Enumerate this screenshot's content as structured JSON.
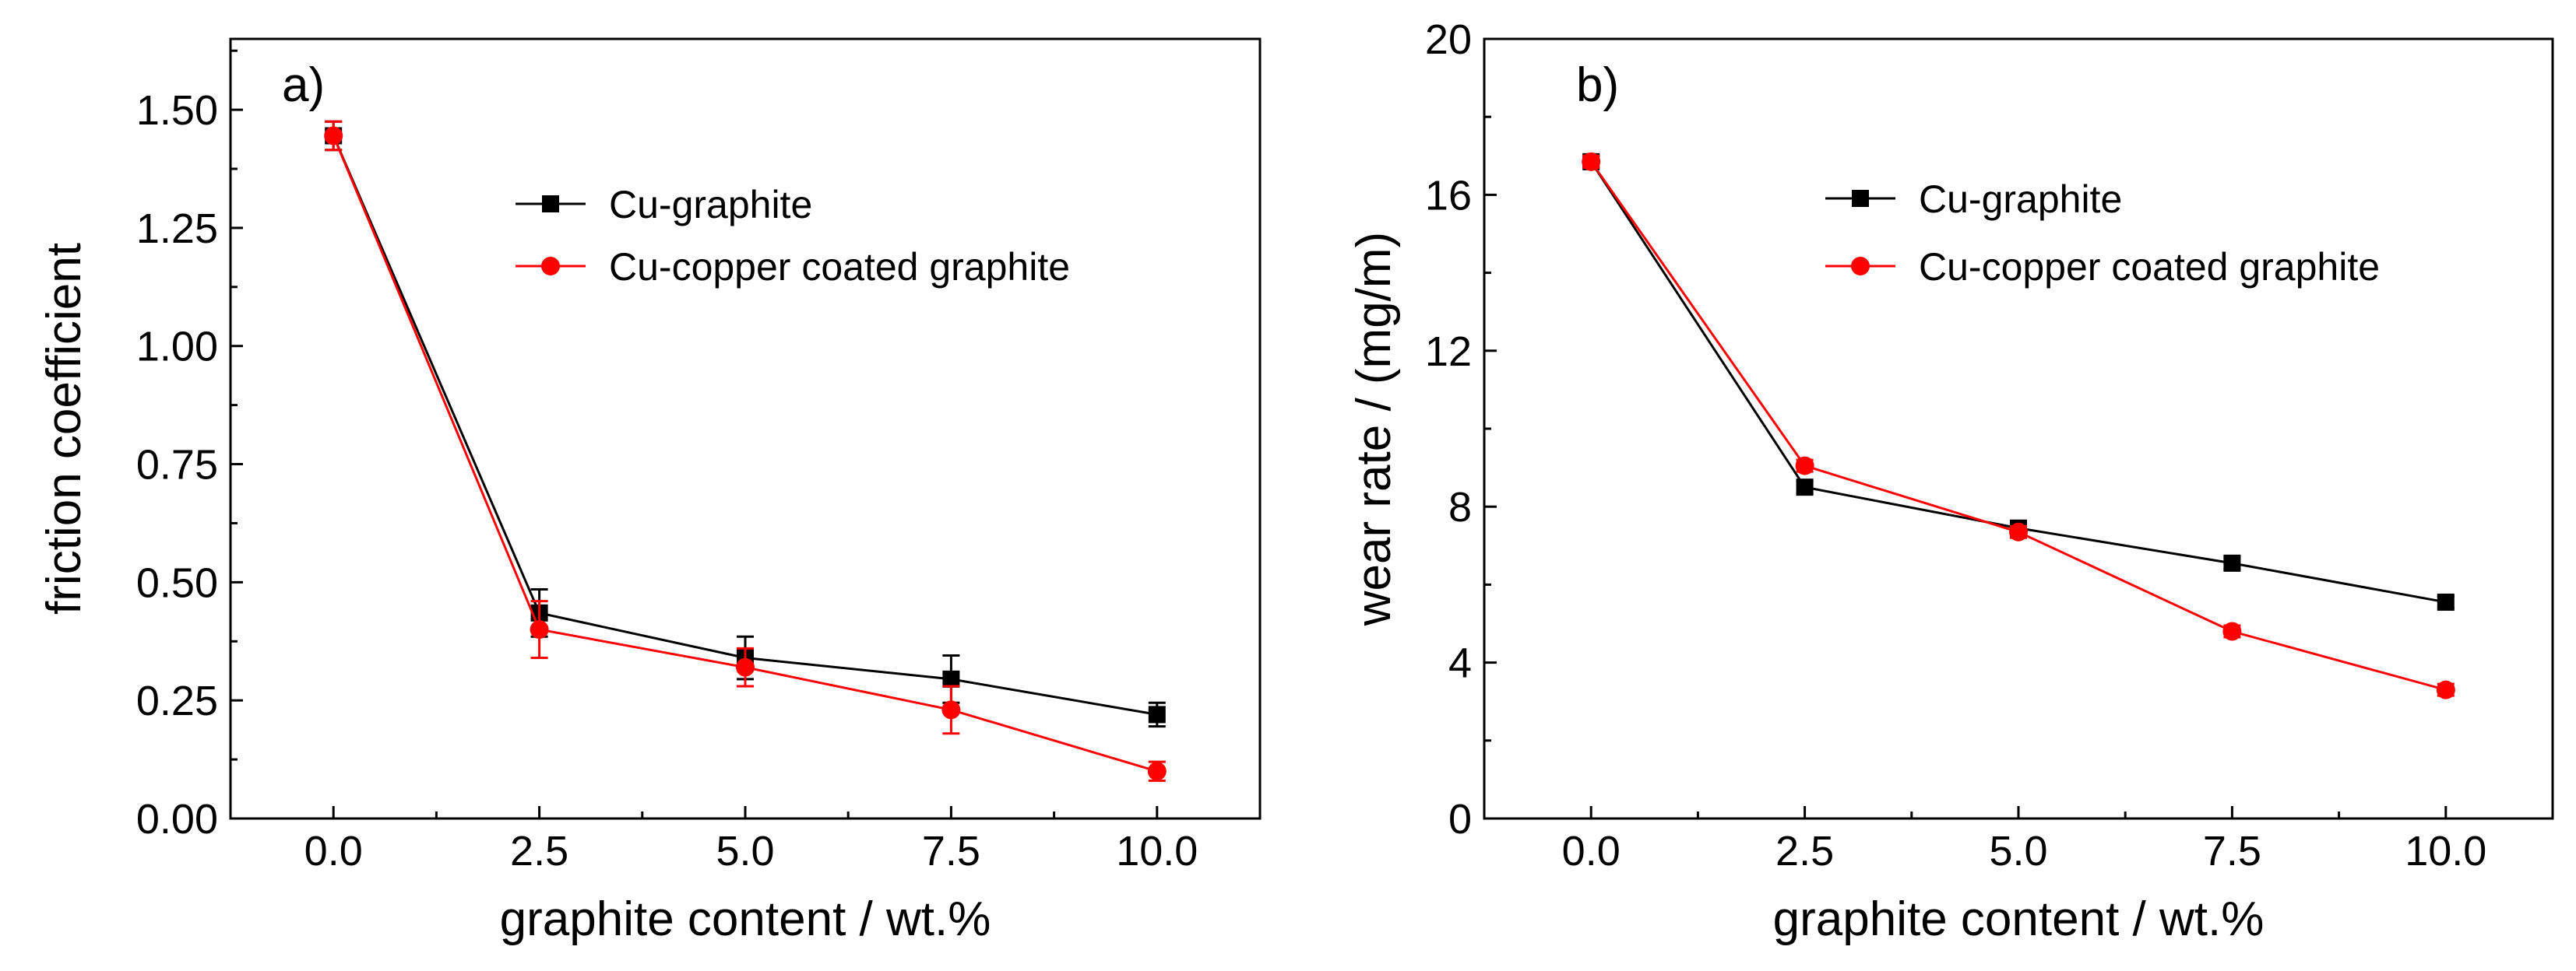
{
  "chart_data": [
    {
      "type": "line",
      "panel_label": "a)",
      "title": "",
      "xlabel": "graphite content / wt.%",
      "ylabel": "friction coefficient",
      "xlim": [
        -1.25,
        11.25
      ],
      "ylim": [
        0.0,
        1.65
      ],
      "x_ticks": [
        0.0,
        2.5,
        5.0,
        7.5,
        10.0
      ],
      "x_tick_labels": [
        "0.0",
        "2.5",
        "5.0",
        "7.5",
        "10.0"
      ],
      "y_ticks": [
        0.0,
        0.25,
        0.5,
        0.75,
        1.0,
        1.25,
        1.5
      ],
      "y_tick_labels": [
        "0.00",
        "0.25",
        "0.50",
        "0.75",
        "1.00",
        "1.25",
        "1.50"
      ],
      "grid": false,
      "legend_position": "upper-right",
      "x": [
        0.0,
        2.5,
        5.0,
        7.5,
        10.0
      ],
      "series": [
        {
          "name": "Cu-graphite",
          "color": "#000000",
          "marker": "square",
          "values": [
            1.445,
            0.435,
            0.34,
            0.295,
            0.22
          ],
          "errors": [
            0.03,
            0.05,
            0.045,
            0.05,
            0.025
          ]
        },
        {
          "name": "Cu-copper coated graphite",
          "color": "#ff0000",
          "marker": "circle",
          "values": [
            1.445,
            0.4,
            0.32,
            0.23,
            0.1
          ],
          "errors": [
            0.03,
            0.06,
            0.04,
            0.05,
            0.02
          ]
        }
      ]
    },
    {
      "type": "line",
      "panel_label": "b)",
      "title": "",
      "xlabel": "graphite content / wt.%",
      "ylabel": "wear rate / (mg/m)",
      "xlim": [
        -1.25,
        11.25
      ],
      "ylim": [
        0,
        20
      ],
      "x_ticks": [
        0.0,
        2.5,
        5.0,
        7.5,
        10.0
      ],
      "x_tick_labels": [
        "0.0",
        "2.5",
        "5.0",
        "7.5",
        "10.0"
      ],
      "y_ticks": [
        0,
        4,
        8,
        12,
        16,
        20
      ],
      "y_tick_labels": [
        "0",
        "4",
        "8",
        "12",
        "16",
        "20"
      ],
      "grid": false,
      "legend_position": "upper-right",
      "x": [
        0.0,
        2.5,
        5.0,
        7.5,
        10.0
      ],
      "series": [
        {
          "name": "Cu-graphite",
          "color": "#000000",
          "marker": "square",
          "values": [
            16.85,
            8.5,
            7.45,
            6.55,
            5.55
          ],
          "errors": [
            0.15,
            0.15,
            0.15,
            0.15,
            0.15
          ]
        },
        {
          "name": "Cu-copper coated graphite",
          "color": "#ff0000",
          "marker": "circle",
          "values": [
            16.85,
            9.05,
            7.35,
            4.8,
            3.3
          ],
          "errors": [
            0.15,
            0.15,
            0.15,
            0.15,
            0.15
          ]
        }
      ]
    }
  ]
}
